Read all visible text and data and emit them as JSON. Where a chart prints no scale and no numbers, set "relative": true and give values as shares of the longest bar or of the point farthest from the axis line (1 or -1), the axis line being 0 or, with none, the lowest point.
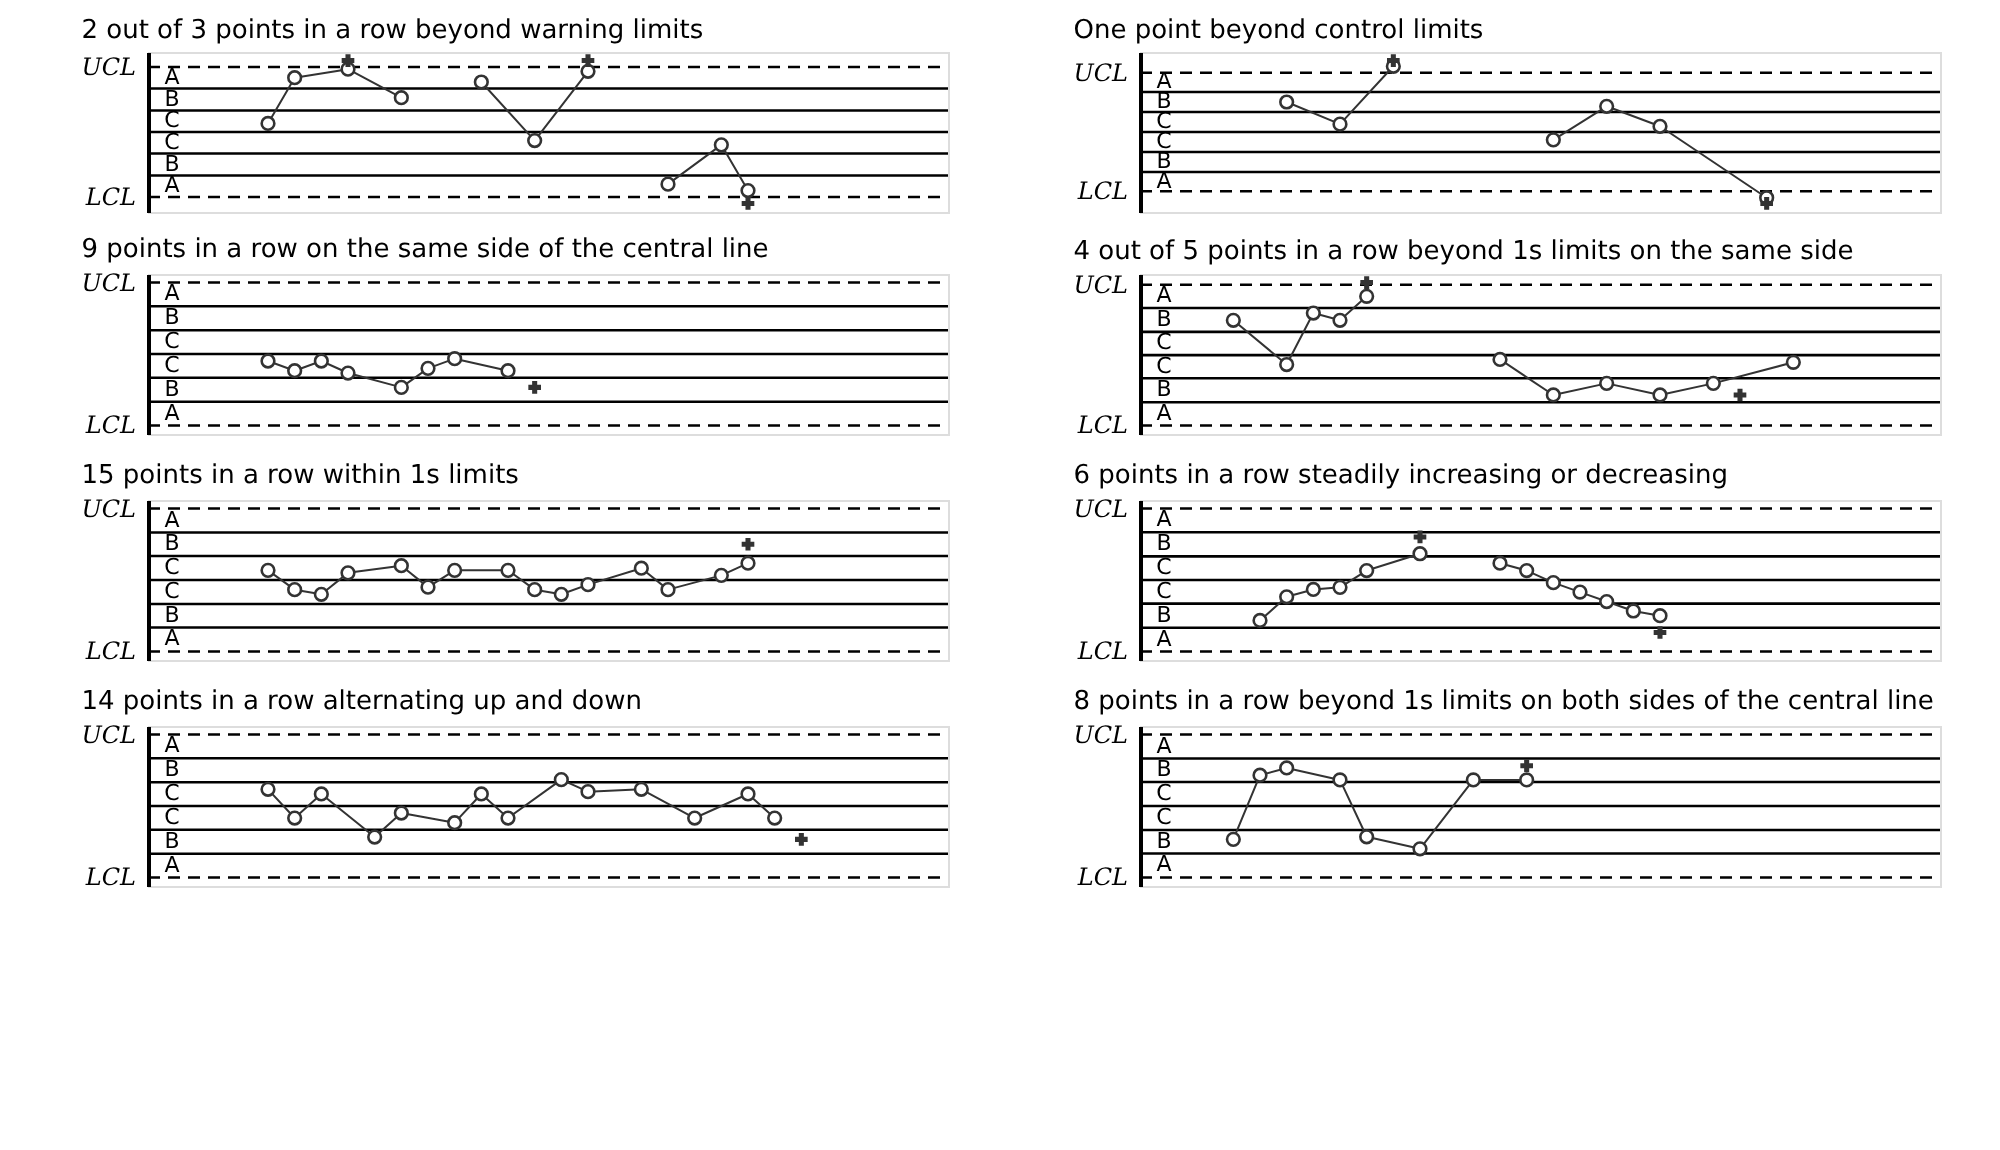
{
  "chart_data": [
    {
      "type": "line",
      "title": "2 out of 3 points in a row beyond warning limits",
      "relative": true,
      "marker": "circle",
      "grid": false,
      "tick_labels": false,
      "categories": [
        null,
        null,
        null,
        null,
        null,
        null,
        null,
        null,
        null,
        null,
        null,
        null,
        null,
        null,
        null,
        null,
        null,
        null,
        null,
        null,
        null,
        null,
        null,
        null,
        null,
        null,
        null,
        null,
        null,
        null
      ],
      "ref_lines": [
        {
          "axis": "y",
          "value": 0.91,
          "label": "UCL",
          "line_style": "dashed",
          "color": "#000000"
        },
        {
          "axis": "y",
          "value": 0.61,
          "color": "#000000"
        },
        {
          "axis": "y",
          "value": 0.3,
          "color": "#000000"
        },
        {
          "axis": "y",
          "value": 0,
          "color": "#000000"
        },
        {
          "axis": "y",
          "value": -0.3,
          "color": "#000000"
        },
        {
          "axis": "y",
          "value": -0.61,
          "color": "#000000"
        },
        {
          "axis": "y",
          "value": -0.91,
          "label": "LCL",
          "line_style": "dashed",
          "color": "#000000"
        }
      ],
      "annotations": [
        "A",
        "B",
        "C",
        "C",
        "B",
        "A"
      ],
      "series": [
        {
          "type": "line",
          "color": "#333333",
          "values": [
            null,
            null,
            null,
            null,
            0.12,
            0.76,
            null,
            0.88,
            null,
            0.48,
            null,
            null,
            null,
            null,
            null,
            null,
            null,
            null,
            null,
            null,
            null,
            null,
            null,
            null,
            null,
            null,
            null,
            null,
            null,
            null
          ]
        },
        {
          "type": "line",
          "color": "#333333",
          "values": [
            null,
            null,
            null,
            null,
            null,
            null,
            null,
            null,
            null,
            null,
            null,
            null,
            0.7,
            null,
            -0.12,
            null,
            0.85,
            null,
            null,
            null,
            null,
            null,
            null,
            null,
            null,
            null,
            null,
            null,
            null,
            null
          ]
        },
        {
          "type": "line",
          "color": "#333333",
          "values": [
            null,
            null,
            null,
            null,
            null,
            null,
            null,
            null,
            null,
            null,
            null,
            null,
            null,
            null,
            null,
            null,
            null,
            null,
            null,
            -0.73,
            null,
            -0.18,
            -0.82,
            null,
            null,
            null,
            null,
            null,
            null,
            null
          ]
        },
        {
          "type": "line",
          "marker": "cross",
          "color": "#333333",
          "values": [
            null,
            null,
            null,
            null,
            null,
            null,
            null,
            1,
            null,
            null,
            null,
            null,
            null,
            null,
            null,
            null,
            null,
            null,
            null,
            null,
            null,
            null,
            null,
            null,
            null,
            null,
            null,
            null,
            null,
            null
          ]
        },
        {
          "type": "line",
          "marker": "cross",
          "color": "#333333",
          "values": [
            null,
            null,
            null,
            null,
            null,
            null,
            null,
            null,
            null,
            null,
            null,
            null,
            null,
            null,
            null,
            null,
            1,
            null,
            null,
            null,
            null,
            null,
            null,
            null,
            null,
            null,
            null,
            null,
            null,
            null
          ]
        },
        {
          "type": "line",
          "marker": "cross",
          "color": "#333333",
          "values": [
            null,
            null,
            null,
            null,
            null,
            null,
            null,
            null,
            null,
            null,
            null,
            null,
            null,
            null,
            null,
            null,
            null,
            null,
            null,
            null,
            null,
            null,
            -1,
            null,
            null,
            null,
            null,
            null,
            null,
            null
          ]
        }
      ]
    },
    {
      "type": "line",
      "title": "One point beyond control limits",
      "relative": true,
      "marker": "circle",
      "grid": false,
      "tick_labels": false,
      "categories": [
        null,
        null,
        null,
        null,
        null,
        null,
        null,
        null,
        null,
        null,
        null,
        null,
        null,
        null,
        null,
        null,
        null,
        null,
        null,
        null,
        null,
        null,
        null,
        null,
        null,
        null,
        null,
        null,
        null,
        null
      ],
      "ref_lines": [
        {
          "axis": "y",
          "value": 0.83,
          "label": "UCL",
          "line_style": "dashed",
          "color": "#000000"
        },
        {
          "axis": "y",
          "value": 0.56,
          "color": "#000000"
        },
        {
          "axis": "y",
          "value": 0.28,
          "color": "#000000"
        },
        {
          "axis": "y",
          "value": 0,
          "color": "#000000"
        },
        {
          "axis": "y",
          "value": -0.28,
          "color": "#000000"
        },
        {
          "axis": "y",
          "value": -0.56,
          "color": "#000000"
        },
        {
          "axis": "y",
          "value": -0.83,
          "label": "LCL",
          "line_style": "dashed",
          "color": "#000000"
        }
      ],
      "annotations": [
        "A",
        "B",
        "C",
        "C",
        "B",
        "A"
      ],
      "series": [
        {
          "type": "line",
          "color": "#333333",
          "values": [
            null,
            null,
            null,
            null,
            null,
            0.42,
            null,
            0.11,
            null,
            0.92,
            null,
            null,
            null,
            null,
            null,
            null,
            null,
            null,
            null,
            null,
            null,
            null,
            null,
            null,
            null,
            null,
            null,
            null,
            null,
            null
          ]
        },
        {
          "type": "line",
          "color": "#333333",
          "values": [
            null,
            null,
            null,
            null,
            null,
            null,
            null,
            null,
            null,
            null,
            null,
            null,
            null,
            null,
            null,
            -0.11,
            null,
            0.36,
            null,
            0.08,
            null,
            null,
            null,
            -0.92,
            null,
            null,
            null,
            null,
            null,
            null
          ]
        },
        {
          "type": "line",
          "marker": "cross",
          "color": "#333333",
          "values": [
            null,
            null,
            null,
            null,
            null,
            null,
            null,
            null,
            null,
            1,
            null,
            null,
            null,
            null,
            null,
            null,
            null,
            null,
            null,
            null,
            null,
            null,
            null,
            null,
            null,
            null,
            null,
            null,
            null,
            null
          ]
        },
        {
          "type": "line",
          "marker": "cross",
          "color": "#333333",
          "values": [
            null,
            null,
            null,
            null,
            null,
            null,
            null,
            null,
            null,
            null,
            null,
            null,
            null,
            null,
            null,
            null,
            null,
            null,
            null,
            null,
            null,
            null,
            null,
            -1,
            null,
            null,
            null,
            null,
            null,
            null
          ]
        }
      ]
    },
    {
      "type": "line",
      "title": "9 points in a row on the same side of the central line",
      "relative": true,
      "marker": "circle",
      "grid": false,
      "tick_labels": false,
      "categories": [
        null,
        null,
        null,
        null,
        null,
        null,
        null,
        null,
        null,
        null,
        null,
        null,
        null,
        null,
        null,
        null,
        null,
        null,
        null,
        null,
        null,
        null,
        null,
        null,
        null,
        null,
        null,
        null,
        null,
        null
      ],
      "ref_lines": [
        {
          "axis": "y",
          "value": 2.14,
          "label": "UCL",
          "line_style": "dashed",
          "color": "#000000"
        },
        {
          "axis": "y",
          "value": 1.43,
          "color": "#000000"
        },
        {
          "axis": "y",
          "value": 0.71,
          "color": "#000000"
        },
        {
          "axis": "y",
          "value": 0,
          "color": "#000000"
        },
        {
          "axis": "y",
          "value": -0.71,
          "color": "#000000"
        },
        {
          "axis": "y",
          "value": -1.43,
          "color": "#000000"
        },
        {
          "axis": "y",
          "value": -2.14,
          "label": "LCL",
          "line_style": "dashed",
          "color": "#000000"
        }
      ],
      "annotations": [
        "A",
        "B",
        "C",
        "C",
        "B",
        "A"
      ],
      "series": [
        {
          "type": "line",
          "color": "#333333",
          "values": [
            null,
            null,
            null,
            null,
            -0.21,
            -0.5,
            -0.21,
            -0.57,
            null,
            -1,
            -0.43,
            -0.14,
            null,
            -0.5,
            null,
            null,
            null,
            null,
            null,
            null,
            null,
            null,
            null,
            null,
            null,
            null,
            null,
            null,
            null,
            null
          ]
        },
        {
          "type": "line",
          "marker": "cross",
          "color": "#333333",
          "values": [
            null,
            null,
            null,
            null,
            null,
            null,
            null,
            null,
            null,
            null,
            null,
            null,
            null,
            null,
            -1,
            null,
            null,
            null,
            null,
            null,
            null,
            null,
            null,
            null,
            null,
            null,
            null,
            null,
            null,
            null
          ]
        }
      ]
    },
    {
      "type": "line",
      "title": "4 out of 5 points in a row beyond 1s limits on the same side",
      "relative": true,
      "marker": "circle",
      "grid": false,
      "tick_labels": false,
      "categories": [
        null,
        null,
        null,
        null,
        null,
        null,
        null,
        null,
        null,
        null,
        null,
        null,
        null,
        null,
        null,
        null,
        null,
        null,
        null,
        null,
        null,
        null,
        null,
        null,
        null,
        null,
        null,
        null,
        null,
        null
      ],
      "ref_lines": [
        {
          "axis": "y",
          "value": 0.97,
          "label": "UCL",
          "line_style": "dashed",
          "color": "#000000"
        },
        {
          "axis": "y",
          "value": 0.65,
          "color": "#000000"
        },
        {
          "axis": "y",
          "value": 0.32,
          "color": "#000000"
        },
        {
          "axis": "y",
          "value": 0,
          "color": "#000000"
        },
        {
          "axis": "y",
          "value": -0.32,
          "color": "#000000"
        },
        {
          "axis": "y",
          "value": -0.65,
          "color": "#000000"
        },
        {
          "axis": "y",
          "value": -0.97,
          "label": "LCL",
          "line_style": "dashed",
          "color": "#000000"
        }
      ],
      "annotations": [
        "A",
        "B",
        "C",
        "C",
        "B",
        "A"
      ],
      "series": [
        {
          "type": "line",
          "color": "#333333",
          "values": [
            null,
            null,
            null,
            0.48,
            null,
            -0.13,
            0.58,
            0.48,
            0.81,
            null,
            null,
            null,
            null,
            null,
            null,
            null,
            null,
            null,
            null,
            null,
            null,
            null,
            null,
            null,
            null,
            null,
            null,
            null,
            null,
            null
          ]
        },
        {
          "type": "line",
          "color": "#333333",
          "values": [
            null,
            null,
            null,
            null,
            null,
            null,
            null,
            null,
            null,
            null,
            null,
            null,
            null,
            -0.06,
            null,
            -0.55,
            null,
            -0.39,
            null,
            -0.55,
            null,
            -0.39,
            null,
            null,
            -0.1,
            null,
            null,
            null,
            null,
            null
          ]
        },
        {
          "type": "line",
          "marker": "cross",
          "color": "#333333",
          "values": [
            null,
            null,
            null,
            null,
            null,
            null,
            null,
            null,
            1,
            null,
            null,
            null,
            null,
            null,
            null,
            null,
            null,
            null,
            null,
            null,
            null,
            null,
            null,
            null,
            null,
            null,
            null,
            null,
            null,
            null
          ]
        },
        {
          "type": "line",
          "marker": "cross",
          "color": "#333333",
          "values": [
            null,
            null,
            null,
            null,
            null,
            null,
            null,
            null,
            null,
            null,
            null,
            null,
            null,
            null,
            null,
            null,
            null,
            null,
            null,
            null,
            null,
            null,
            -0.55,
            null,
            null,
            null,
            null,
            null,
            null,
            null
          ]
        }
      ]
    },
    {
      "type": "line",
      "title": "15 points in a row within 1s limits",
      "relative": true,
      "marker": "circle",
      "grid": false,
      "tick_labels": false,
      "categories": [
        null,
        null,
        null,
        null,
        null,
        null,
        null,
        null,
        null,
        null,
        null,
        null,
        null,
        null,
        null,
        null,
        null,
        null,
        null,
        null,
        null,
        null,
        null,
        null,
        null,
        null,
        null,
        null,
        null,
        null
      ],
      "ref_lines": [
        {
          "axis": "y",
          "value": 2,
          "label": "UCL",
          "line_style": "dashed",
          "color": "#000000"
        },
        {
          "axis": "y",
          "value": 1.33,
          "color": "#000000"
        },
        {
          "axis": "y",
          "value": 0.67,
          "color": "#000000"
        },
        {
          "axis": "y",
          "value": 0,
          "color": "#000000"
        },
        {
          "axis": "y",
          "value": -0.67,
          "color": "#000000"
        },
        {
          "axis": "y",
          "value": -1.33,
          "color": "#000000"
        },
        {
          "axis": "y",
          "value": -2,
          "label": "LCL",
          "line_style": "dashed",
          "color": "#000000"
        }
      ],
      "annotations": [
        "A",
        "B",
        "C",
        "C",
        "B",
        "A"
      ],
      "series": [
        {
          "type": "line",
          "color": "#333333",
          "values": [
            null,
            null,
            null,
            null,
            0.27,
            -0.27,
            -0.4,
            0.2,
            null,
            0.4,
            -0.2,
            0.27,
            null,
            0.27,
            -0.27,
            -0.4,
            -0.13,
            null,
            0.33,
            -0.27,
            null,
            0.13,
            0.47,
            null,
            null,
            null,
            null,
            null,
            null,
            null
          ]
        },
        {
          "type": "line",
          "marker": "cross",
          "color": "#333333",
          "values": [
            null,
            null,
            null,
            null,
            null,
            null,
            null,
            null,
            null,
            null,
            null,
            null,
            null,
            null,
            null,
            null,
            null,
            null,
            null,
            null,
            null,
            null,
            1,
            null,
            null,
            null,
            null,
            null,
            null,
            null
          ]
        }
      ]
    },
    {
      "type": "line",
      "title": "6 points in a row steadily increasing or decreasing",
      "relative": true,
      "marker": "circle",
      "grid": false,
      "tick_labels": false,
      "categories": [
        null,
        null,
        null,
        null,
        null,
        null,
        null,
        null,
        null,
        null,
        null,
        null,
        null,
        null,
        null,
        null,
        null,
        null,
        null,
        null,
        null,
        null,
        null,
        null,
        null,
        null,
        null,
        null,
        null,
        null
      ],
      "ref_lines": [
        {
          "axis": "y",
          "value": 1.36,
          "label": "UCL",
          "line_style": "dashed",
          "color": "#000000"
        },
        {
          "axis": "y",
          "value": 0.91,
          "color": "#000000"
        },
        {
          "axis": "y",
          "value": 0.45,
          "color": "#000000"
        },
        {
          "axis": "y",
          "value": 0,
          "color": "#000000"
        },
        {
          "axis": "y",
          "value": -0.45,
          "color": "#000000"
        },
        {
          "axis": "y",
          "value": -0.91,
          "color": "#000000"
        },
        {
          "axis": "y",
          "value": -1.36,
          "label": "LCL",
          "line_style": "dashed",
          "color": "#000000"
        }
      ],
      "annotations": [
        "A",
        "B",
        "C",
        "C",
        "B",
        "A"
      ],
      "series": [
        {
          "type": "line",
          "color": "#333333",
          "values": [
            null,
            null,
            null,
            null,
            -0.77,
            -0.32,
            -0.18,
            -0.14,
            0.18,
            null,
            0.5,
            null,
            null,
            null,
            null,
            null,
            null,
            null,
            null,
            null,
            null,
            null,
            null,
            null,
            null,
            null,
            null,
            null,
            null,
            null
          ]
        },
        {
          "type": "line",
          "color": "#333333",
          "values": [
            null,
            null,
            null,
            null,
            null,
            null,
            null,
            null,
            null,
            null,
            null,
            null,
            null,
            0.32,
            0.18,
            -0.05,
            -0.23,
            -0.41,
            -0.59,
            -0.68,
            null,
            null,
            null,
            null,
            null,
            null,
            null,
            null,
            null,
            null
          ]
        },
        {
          "type": "line",
          "marker": "cross",
          "color": "#333333",
          "values": [
            null,
            null,
            null,
            null,
            null,
            null,
            null,
            null,
            null,
            null,
            0.82,
            null,
            null,
            null,
            null,
            null,
            null,
            null,
            null,
            null,
            null,
            null,
            null,
            null,
            null,
            null,
            null,
            null,
            null,
            null
          ]
        },
        {
          "type": "line",
          "marker": "cross",
          "color": "#333333",
          "values": [
            null,
            null,
            null,
            null,
            null,
            null,
            null,
            null,
            null,
            null,
            null,
            null,
            null,
            null,
            null,
            null,
            null,
            null,
            null,
            -1,
            null,
            null,
            null,
            null,
            null,
            null,
            null,
            null,
            null,
            null
          ]
        }
      ]
    },
    {
      "type": "line",
      "title": "14 points in a row alternating up and down",
      "relative": true,
      "marker": "circle",
      "grid": false,
      "tick_labels": false,
      "categories": [
        null,
        null,
        null,
        null,
        null,
        null,
        null,
        null,
        null,
        null,
        null,
        null,
        null,
        null,
        null,
        null,
        null,
        null,
        null,
        null,
        null,
        null,
        null,
        null,
        null,
        null,
        null,
        null,
        null,
        null
      ],
      "ref_lines": [
        {
          "axis": "y",
          "value": 2.14,
          "label": "UCL",
          "line_style": "dashed",
          "color": "#000000"
        },
        {
          "axis": "y",
          "value": 1.43,
          "color": "#000000"
        },
        {
          "axis": "y",
          "value": 0.71,
          "color": "#000000"
        },
        {
          "axis": "y",
          "value": 0,
          "color": "#000000"
        },
        {
          "axis": "y",
          "value": -0.71,
          "color": "#000000"
        },
        {
          "axis": "y",
          "value": -1.43,
          "color": "#000000"
        },
        {
          "axis": "y",
          "value": -2.14,
          "label": "LCL",
          "line_style": "dashed",
          "color": "#000000"
        }
      ],
      "annotations": [
        "A",
        "B",
        "C",
        "C",
        "B",
        "A"
      ],
      "series": [
        {
          "type": "line",
          "color": "#333333",
          "values": [
            null,
            null,
            null,
            null,
            0.5,
            -0.36,
            0.36,
            null,
            -0.93,
            -0.21,
            null,
            -0.5,
            0.36,
            -0.36,
            null,
            0.79,
            0.43,
            null,
            0.5,
            null,
            -0.36,
            null,
            0.36,
            -0.36,
            null,
            null,
            null,
            null,
            null,
            null
          ]
        },
        {
          "type": "line",
          "marker": "cross",
          "color": "#333333",
          "values": [
            null,
            null,
            null,
            null,
            null,
            null,
            null,
            null,
            null,
            null,
            null,
            null,
            null,
            null,
            null,
            null,
            null,
            null,
            null,
            null,
            null,
            null,
            null,
            null,
            -1,
            null,
            null,
            null,
            null,
            null
          ]
        }
      ]
    },
    {
      "type": "line",
      "title": "8 points in a row beyond 1s limits on both sides of the central line",
      "relative": true,
      "marker": "circle",
      "grid": false,
      "tick_labels": false,
      "categories": [
        null,
        null,
        null,
        null,
        null,
        null,
        null,
        null,
        null,
        null,
        null,
        null,
        null,
        null,
        null,
        null,
        null,
        null,
        null,
        null,
        null,
        null,
        null,
        null,
        null,
        null,
        null,
        null,
        null,
        null
      ],
      "ref_lines": [
        {
          "axis": "y",
          "value": 1.67,
          "label": "UCL",
          "line_style": "dashed",
          "color": "#000000"
        },
        {
          "axis": "y",
          "value": 1.11,
          "color": "#000000"
        },
        {
          "axis": "y",
          "value": 0.56,
          "color": "#000000"
        },
        {
          "axis": "y",
          "value": 0,
          "color": "#000000"
        },
        {
          "axis": "y",
          "value": -0.56,
          "color": "#000000"
        },
        {
          "axis": "y",
          "value": -1.11,
          "color": "#000000"
        },
        {
          "axis": "y",
          "value": -1.67,
          "label": "LCL",
          "line_style": "dashed",
          "color": "#000000"
        }
      ],
      "annotations": [
        "A",
        "B",
        "C",
        "C",
        "B",
        "A"
      ],
      "series": [
        {
          "type": "line",
          "color": "#333333",
          "values": [
            null,
            null,
            null,
            -0.78,
            0.72,
            0.89,
            null,
            0.61,
            -0.72,
            null,
            -1,
            null,
            0.61,
            null,
            0.61,
            null,
            null,
            null,
            null,
            null,
            null,
            null,
            null,
            null,
            null,
            null,
            null,
            null,
            null,
            null
          ]
        },
        {
          "type": "line",
          "marker": "cross",
          "color": "#333333",
          "values": [
            null,
            null,
            null,
            null,
            null,
            null,
            null,
            null,
            null,
            null,
            null,
            null,
            null,
            null,
            0.94,
            null,
            null,
            null,
            null,
            null,
            null,
            null,
            null,
            null,
            null,
            null,
            null,
            null,
            null,
            null
          ]
        }
      ]
    }
  ]
}
